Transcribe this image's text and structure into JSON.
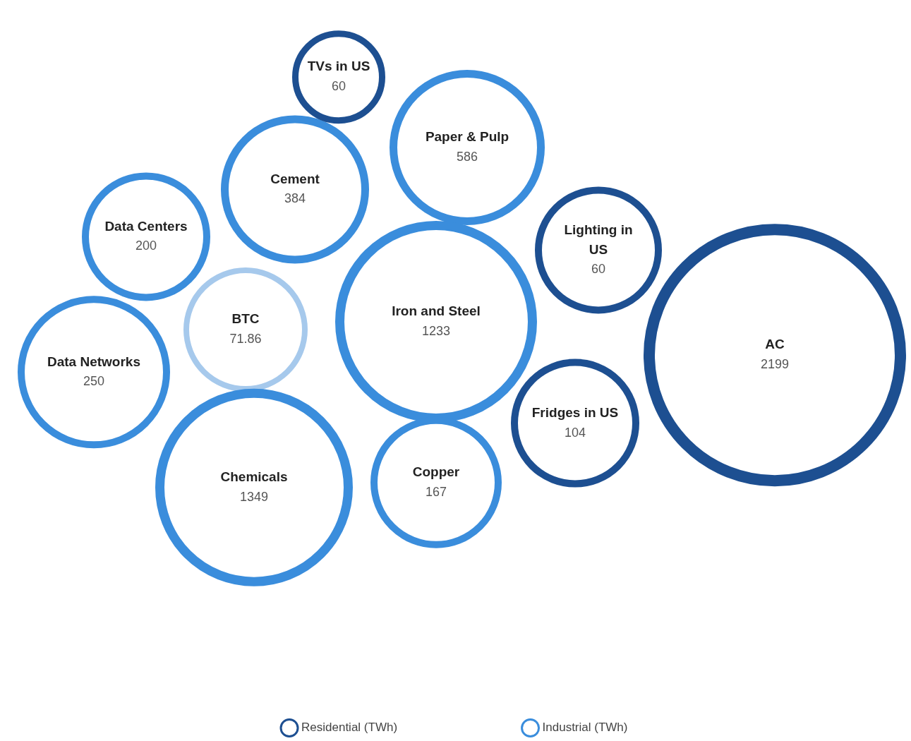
{
  "chart_data": {
    "type": "other",
    "categories": [
      "TVs in US",
      "Paper & Pulp",
      "Cement",
      "Data Centers",
      "Lighting in US",
      "BTC",
      "Iron and Steel",
      "AC",
      "Data Networks",
      "Fridges in US",
      "Chemicals",
      "Copper"
    ],
    "series": [
      {
        "name": "Residential (TWh)",
        "color": "#1d4f91",
        "values": [
          60,
          null,
          null,
          null,
          60,
          null,
          null,
          2199,
          null,
          104,
          null,
          null
        ]
      },
      {
        "name": "Industrial (TWh)",
        "color": "#3a8ddc",
        "values": [
          null,
          586,
          384,
          200,
          null,
          null,
          1233,
          null,
          250,
          null,
          1349,
          167
        ]
      },
      {
        "color": "#a6c9ec",
        "values": [
          null,
          null,
          null,
          null,
          null,
          71.86,
          null,
          null,
          null,
          null,
          null,
          null
        ]
      }
    ],
    "data_labels": true,
    "legend": "bottom"
  }
}
